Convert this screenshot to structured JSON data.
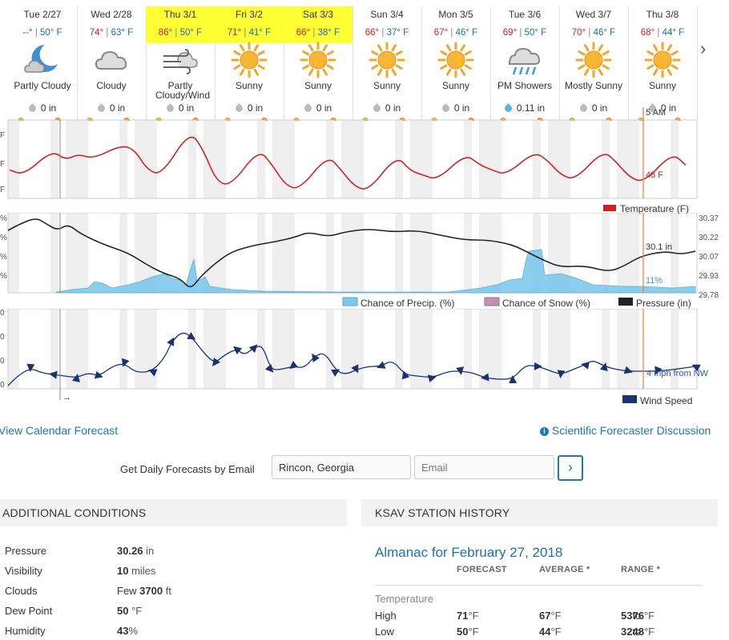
{
  "days": [
    {
      "name": "Tue 2/27",
      "hi": "--°",
      "lo": "50° F",
      "icon": "moon-cloud-icon",
      "cond": "Partly Cloudy",
      "precip": "0 in",
      "highlight": false
    },
    {
      "name": "Wed 2/28",
      "hi": "74°",
      "lo": "63° F",
      "icon": "cloud-icon",
      "cond": "Cloudy",
      "precip": "0 in",
      "highlight": false
    },
    {
      "name": "Thu 3/1",
      "hi": "86°",
      "lo": "50° F",
      "icon": "wind-cloud-icon",
      "cond": "Partly Cloudy/Wind",
      "precip": "0 in",
      "highlight": true
    },
    {
      "name": "Fri 3/2",
      "hi": "71°",
      "lo": "41° F",
      "icon": "sun-icon",
      "cond": "Sunny",
      "precip": "0 in",
      "highlight": true
    },
    {
      "name": "Sat 3/3",
      "hi": "66°",
      "lo": "38° F",
      "icon": "sun-icon",
      "cond": "Sunny",
      "precip": "0 in",
      "highlight": true
    },
    {
      "name": "Sun 3/4",
      "hi": "66°",
      "lo": "37° F",
      "icon": "sun-icon",
      "cond": "Sunny",
      "precip": "0 in",
      "highlight": false
    },
    {
      "name": "Mon 3/5",
      "hi": "67°",
      "lo": "46° F",
      "icon": "sun-icon",
      "cond": "Sunny",
      "precip": "0 in",
      "highlight": false
    },
    {
      "name": "Tue 3/6",
      "hi": "69°",
      "lo": "50° F",
      "icon": "rain-cloud-icon",
      "cond": "PM Showers",
      "precip": "0.11 in",
      "highlight": false
    },
    {
      "name": "Wed 3/7",
      "hi": "70°",
      "lo": "46° F",
      "icon": "sun-icon",
      "cond": "Mostly Sunny",
      "precip": "0 in",
      "highlight": false
    },
    {
      "name": "Thu 3/8",
      "hi": "68°",
      "lo": "44° F",
      "icon": "sun-icon",
      "cond": "Sunny",
      "precip": "0 in",
      "highlight": false
    }
  ],
  "charts": {
    "cursor_time": "5 AM",
    "temp_readout": "48 F",
    "temp_legend": "Temperature (F)",
    "pressure_readout": "30.1 in",
    "precip_readout": "11%",
    "wind_readout": "4 mph from NW",
    "pressure_ticks": [
      "30.37",
      "30.22",
      "30.07",
      "29.93",
      "29.78"
    ],
    "legend_precip": "Chance of Precip. (%)",
    "legend_snow": "Chance of Snow (%)",
    "legend_pressure": "Pressure (in)",
    "legend_wind": "Wind Speed",
    "left_tick_f": "F",
    "left_tick_pct": "%",
    "left_tick_0": "0",
    "colors": {
      "temp": "#d62020",
      "pressure": "#222222",
      "precip": "#7ec8ec",
      "snow": "#c28fb5",
      "wind": "#1a3370",
      "cursor": "#f07a30"
    }
  },
  "links": {
    "calendar": "View Calendar Forecast",
    "discussion": "Scientific Forecaster Discussion"
  },
  "email": {
    "label": "Get Daily Forecasts by Email",
    "location_value": "Rincon, Georgia",
    "email_placeholder": "Email",
    "go": "›"
  },
  "additional": {
    "title": "ADDITIONAL CONDITIONS",
    "rows": [
      {
        "label": "Pressure",
        "value": "30.26",
        "unit": " in"
      },
      {
        "label": "Visibility",
        "value": "10",
        "unit": " miles"
      },
      {
        "label": "Clouds",
        "prefix": "Few ",
        "value": "3700",
        "unit": " ft"
      },
      {
        "label": "Dew Point",
        "value": "50",
        "unit": " °F"
      },
      {
        "label": "Humidity",
        "value": "43",
        "unit": "%"
      }
    ]
  },
  "history": {
    "title": "KSAV STATION HISTORY",
    "almanac": "Almanac for February 27, 2018",
    "cols": [
      "FORECAST",
      "AVERAGE *",
      "RANGE *"
    ],
    "section": "Temperature",
    "rows": [
      {
        "label": "High",
        "forecast": "71",
        "average": "67",
        "range_lo": "53",
        "range_hi": "76",
        "unit": " °F",
        "to": " to "
      },
      {
        "label": "Low",
        "forecast": "50",
        "average": "44",
        "range_lo": "32",
        "range_hi": "48",
        "unit": " °F",
        "to": " to "
      }
    ]
  }
}
